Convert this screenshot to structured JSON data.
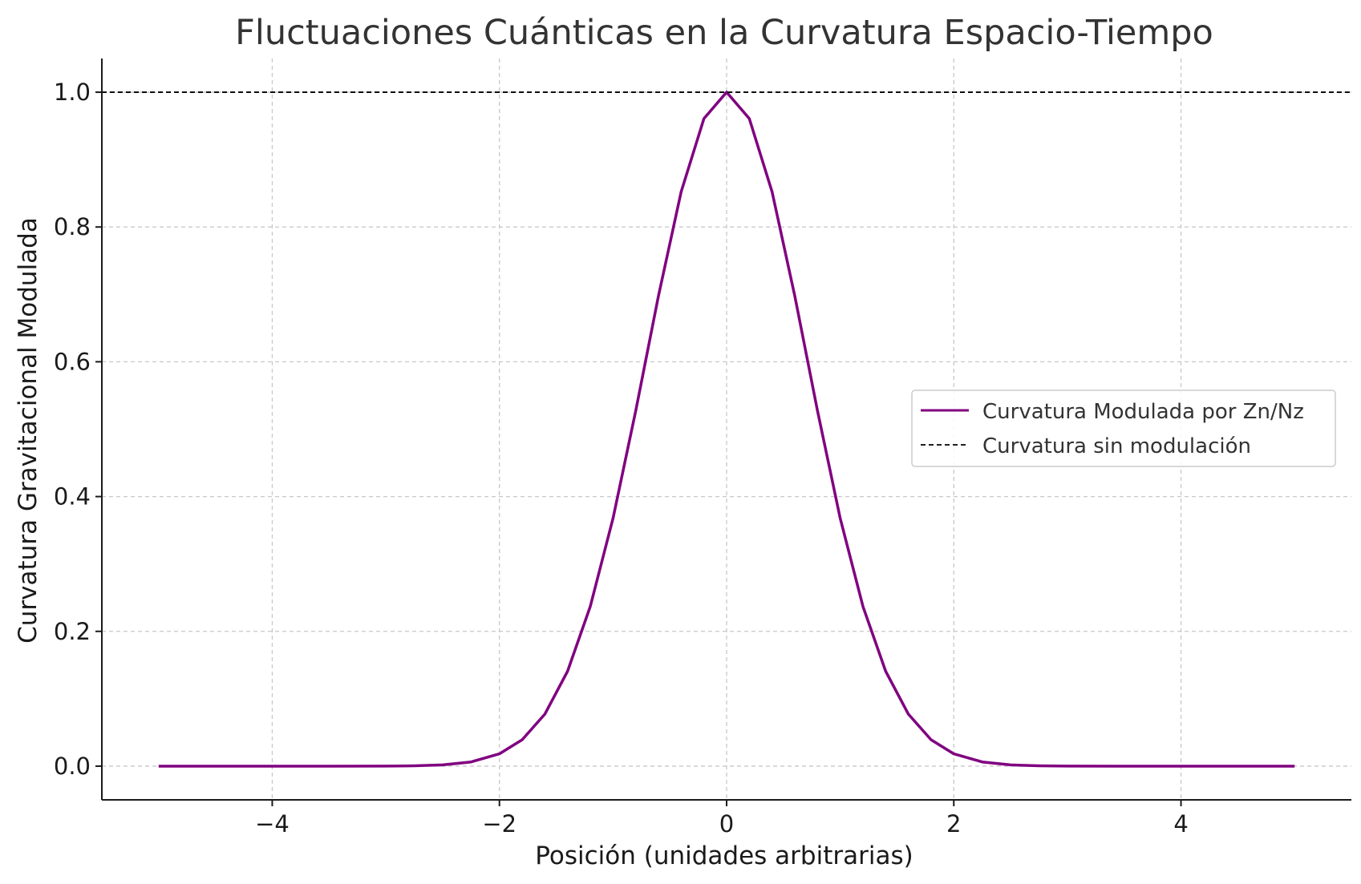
{
  "chart_data": {
    "type": "line",
    "title": "Fluctuaciones Cuánticas en la Curvatura Espacio-Tiempo",
    "xlabel": "Posición (unidades arbitrarias)",
    "ylabel": "Curvatura Gravitacional Modulada",
    "xlim": [
      -5.5,
      5.5
    ],
    "ylim": [
      -0.05,
      1.05
    ],
    "xticks": [
      -4,
      -2,
      0,
      2,
      4
    ],
    "xtick_labels": [
      "−4",
      "−2",
      "0",
      "2",
      "4"
    ],
    "yticks": [
      0.0,
      0.2,
      0.4,
      0.6,
      0.8,
      1.0
    ],
    "ytick_labels": [
      "0.0",
      "0.2",
      "0.4",
      "0.6",
      "0.8",
      "1.0"
    ],
    "grid": true,
    "legend_position": "center-right",
    "series": [
      {
        "name": "Curvatura Modulada por Zn/Nz",
        "color": "#800080",
        "style": "solid",
        "x": [
          -5.0,
          -4.5,
          -4.0,
          -3.5,
          -3.0,
          -2.75,
          -2.5,
          -2.25,
          -2.0,
          -1.8,
          -1.6,
          -1.4,
          -1.2,
          -1.0,
          -0.8,
          -0.6,
          -0.4,
          -0.2,
          0.0,
          0.2,
          0.4,
          0.6,
          0.8,
          1.0,
          1.2,
          1.4,
          1.6,
          1.8,
          2.0,
          2.25,
          2.5,
          2.75,
          3.0,
          3.5,
          4.0,
          4.5,
          5.0
        ],
        "y": [
          0.0,
          0.0,
          0.0,
          0.0,
          0.0001,
          0.0005,
          0.0019,
          0.0063,
          0.0183,
          0.0392,
          0.0773,
          0.1409,
          0.2369,
          0.3679,
          0.5273,
          0.6977,
          0.8521,
          0.9608,
          1.0,
          0.9608,
          0.8521,
          0.6977,
          0.5273,
          0.3679,
          0.2369,
          0.1409,
          0.0773,
          0.0392,
          0.0183,
          0.0063,
          0.0019,
          0.0005,
          0.0001,
          0.0,
          0.0,
          0.0,
          0.0
        ]
      },
      {
        "name": "Curvatura sin modulación",
        "color": "#000000",
        "style": "dashed",
        "y_constant": 1.0
      }
    ]
  }
}
